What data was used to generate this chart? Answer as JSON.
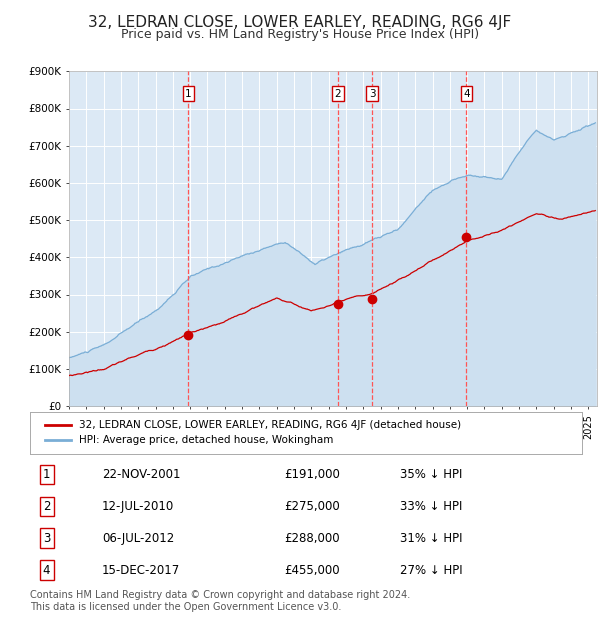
{
  "title": "32, LEDRAN CLOSE, LOWER EARLEY, READING, RG6 4JF",
  "subtitle": "Price paid vs. HM Land Registry's House Price Index (HPI)",
  "title_fontsize": 11,
  "subtitle_fontsize": 9,
  "ylim": [
    0,
    900000
  ],
  "xlim_start": 1995.0,
  "xlim_end": 2025.5,
  "background_color": "#dce9f5",
  "grid_color": "#ffffff",
  "red_line_color": "#cc0000",
  "blue_line_color": "#7aaed6",
  "sale_marker_color": "#cc0000",
  "dashed_line_color": "#ff5555",
  "legend_red_label": "32, LEDRAN CLOSE, LOWER EARLEY, READING, RG6 4JF (detached house)",
  "legend_blue_label": "HPI: Average price, detached house, Wokingham",
  "transactions": [
    {
      "num": 1,
      "date": "22-NOV-2001",
      "year": 2001.9,
      "price": 191000,
      "pct": "35% ↓ HPI"
    },
    {
      "num": 2,
      "date": "12-JUL-2010",
      "year": 2010.53,
      "price": 275000,
      "pct": "33% ↓ HPI"
    },
    {
      "num": 3,
      "date": "06-JUL-2012",
      "year": 2012.51,
      "price": 288000,
      "pct": "31% ↓ HPI"
    },
    {
      "num": 4,
      "date": "15-DEC-2017",
      "year": 2017.96,
      "price": 455000,
      "pct": "27% ↓ HPI"
    }
  ],
  "footer": "Contains HM Land Registry data © Crown copyright and database right 2024.\nThis data is licensed under the Open Government Licence v3.0.",
  "footer_fontsize": 7,
  "ytick_labels": [
    "£0",
    "£100K",
    "£200K",
    "£300K",
    "£400K",
    "£500K",
    "£600K",
    "£700K",
    "£800K",
    "£900K"
  ],
  "ytick_values": [
    0,
    100000,
    200000,
    300000,
    400000,
    500000,
    600000,
    700000,
    800000,
    900000
  ]
}
